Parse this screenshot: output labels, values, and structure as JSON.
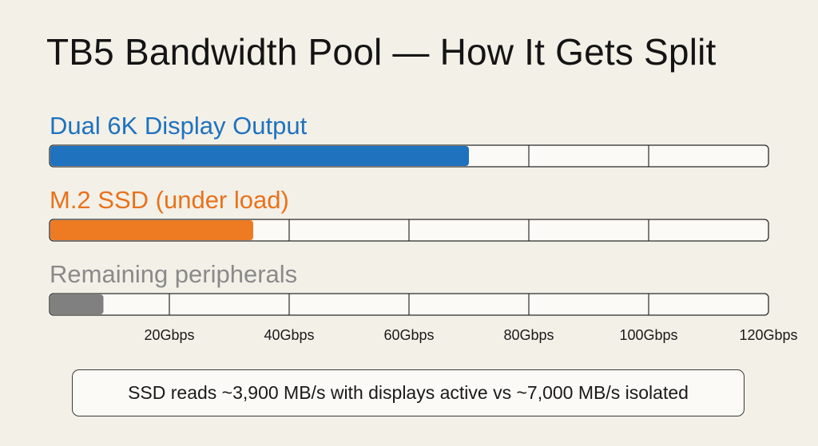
{
  "title": "TB5 Bandwidth Pool — How It Gets Split",
  "chart_data": {
    "type": "bar",
    "orientation": "horizontal",
    "title": "TB5 Bandwidth Pool — How It Gets Split",
    "xlabel": "",
    "ylabel": "",
    "xlim": [
      0,
      120
    ],
    "unit": "Gbps",
    "ticks": [
      20,
      40,
      60,
      80,
      100,
      120
    ],
    "tick_labels": [
      "20Gbps",
      "40Gbps",
      "60Gbps",
      "80Gbps",
      "100Gbps",
      "120Gbps"
    ],
    "grid": true,
    "legend": "none",
    "categories": [
      "Dual 6K Display Output",
      "M.2 SSD (under load)",
      "Remaining peripherals"
    ],
    "values": [
      70,
      34,
      9
    ],
    "colors": [
      "#1f72be",
      "#ee7a22",
      "#808080"
    ],
    "label_colors": [
      "#1f72be",
      "#e8721c",
      "#8a8a8a"
    ]
  },
  "note": "SSD reads ~3,900 MB/s with displays active vs ~7,000 MB/s isolated"
}
